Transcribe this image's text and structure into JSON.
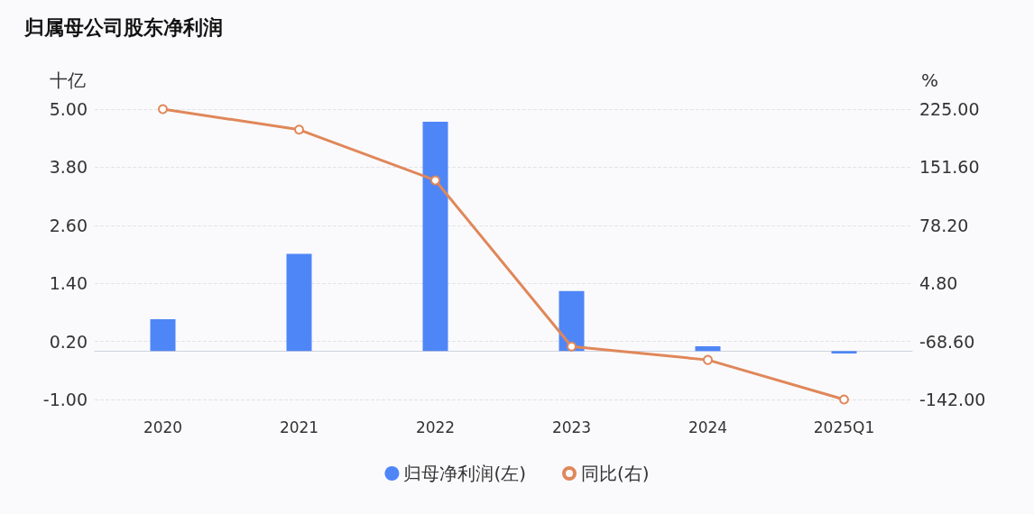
{
  "chart_data": {
    "type": "bar",
    "title": "归属母公司股东净利润",
    "ylabel": "十亿",
    "y2label": "%",
    "categories": [
      "2020",
      "2021",
      "2022",
      "2023",
      "2024",
      "2025Q1"
    ],
    "series": [
      {
        "name": "归母净利润(左)",
        "color": "#4f86f7",
        "values": [
          0.66,
          2.01,
          4.74,
          1.24,
          0.1,
          -0.05
        ]
      },
      {
        "name": "同比(右)",
        "type": "line",
        "axis": "y2",
        "color": "#e0875a",
        "marker": "circle",
        "values": [
          225,
          199,
          135,
          -75,
          -92,
          -142
        ]
      }
    ],
    "ylim": [
      -1,
      5
    ],
    "yticks": [
      {
        "value": -1,
        "label": "-1.00"
      },
      {
        "value": 0.2,
        "label": "0.20"
      },
      {
        "value": 1.4,
        "label": "1.40"
      },
      {
        "value": 2.6,
        "label": "2.60"
      },
      {
        "value": 3.8,
        "label": "3.80"
      },
      {
        "value": 5,
        "label": "5.00"
      }
    ],
    "y2lim": [
      -142,
      225
    ],
    "y2ticks": [
      {
        "value": -142,
        "label": "-142.00"
      },
      {
        "value": -68.6,
        "label": "-68.60"
      },
      {
        "value": 4.8,
        "label": "4.80"
      },
      {
        "value": 78.2,
        "label": "78.20"
      },
      {
        "value": 151.6,
        "label": "151.60"
      },
      {
        "value": 225,
        "label": "225.00"
      }
    ],
    "grid": "y",
    "legend": "bottom"
  }
}
